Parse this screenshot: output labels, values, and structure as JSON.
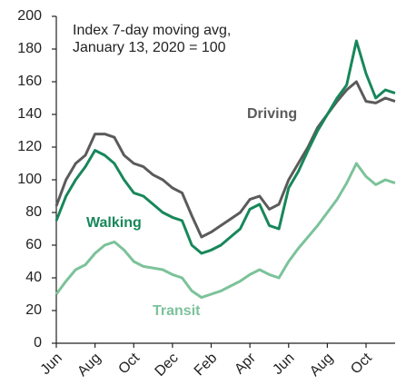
{
  "chart_data": {
    "type": "line",
    "title": "Index 7-day moving avg,",
    "subtitle": "January 13, 2020 = 100",
    "categories": [
      "Jun",
      null,
      null,
      null,
      "Aug",
      null,
      null,
      null,
      "Oct",
      null,
      null,
      null,
      "Dec",
      null,
      null,
      null,
      "Feb",
      null,
      null,
      null,
      "Apr",
      null,
      null,
      null,
      "Jun",
      null,
      null,
      null,
      "Aug",
      null,
      null,
      null,
      "Oct",
      null,
      null,
      null
    ],
    "series": [
      {
        "name": "Driving",
        "color": "#5b5b5b",
        "values": [
          84,
          100,
          110,
          115,
          128,
          128,
          126,
          115,
          110,
          108,
          103,
          100,
          95,
          92,
          78,
          65,
          68,
          72,
          76,
          80,
          88,
          90,
          82,
          85,
          100,
          110,
          120,
          132,
          140,
          148,
          155,
          160,
          148,
          147,
          150,
          148
        ]
      },
      {
        "name": "Walking",
        "color": "#17875a",
        "values": [
          75,
          90,
          100,
          108,
          118,
          115,
          110,
          100,
          92,
          90,
          85,
          80,
          77,
          75,
          60,
          55,
          57,
          60,
          65,
          70,
          82,
          85,
          72,
          70,
          95,
          105,
          118,
          130,
          140,
          150,
          158,
          185,
          165,
          150,
          155,
          153
        ]
      },
      {
        "name": "Transit",
        "color": "#7cc29a",
        "values": [
          30,
          38,
          45,
          48,
          55,
          60,
          62,
          57,
          50,
          47,
          46,
          45,
          42,
          40,
          32,
          28,
          30,
          32,
          35,
          38,
          42,
          45,
          42,
          40,
          50,
          58,
          65,
          72,
          80,
          88,
          98,
          110,
          102,
          97,
          100,
          98
        ]
      }
    ],
    "ylim": [
      0,
      200
    ],
    "yticks": [
      0,
      20,
      40,
      60,
      80,
      100,
      120,
      140,
      160,
      180,
      200
    ],
    "grid": false
  }
}
